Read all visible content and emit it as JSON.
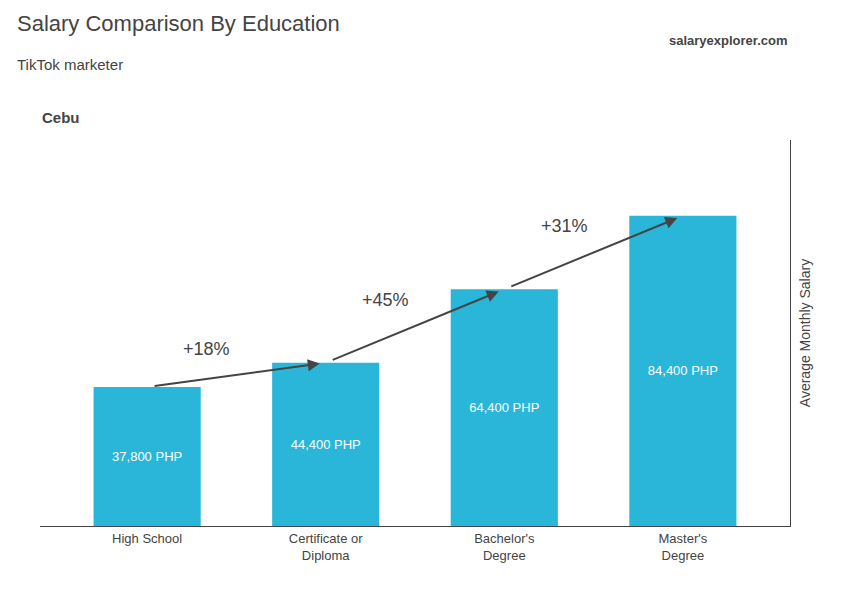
{
  "chart_data": {
    "type": "bar",
    "title": "Salary Comparison By Education",
    "subtitle": "TikTok marketer",
    "ylabel": "Average Monthly Salary",
    "categories": [
      "High School",
      "Certificate or\nDiploma",
      "Bachelor's\nDegree",
      "Master's\nDegree"
    ],
    "values": [
      37800,
      44400,
      64400,
      84400
    ],
    "value_labels": [
      "37,800 PHP",
      "44,400 PHP",
      "64,400 PHP",
      "84,400 PHP"
    ],
    "data_labels": true,
    "color": "#29b6d8",
    "ylim": [
      0,
      105000
    ],
    "grid": false,
    "tick_labels": "x",
    "annotations": [
      {
        "text": "Cebu"
      },
      {
        "text": "salaryexplorer.com"
      },
      {
        "text": "+18%",
        "from": "High School",
        "to": "Certificate or\nDiploma"
      },
      {
        "text": "+45%",
        "from": "Certificate or\nDiploma",
        "to": "Bachelor's\nDegree"
      },
      {
        "text": "+31%",
        "from": "Bachelor's\nDegree",
        "to": "Master's\nDegree"
      }
    ]
  }
}
